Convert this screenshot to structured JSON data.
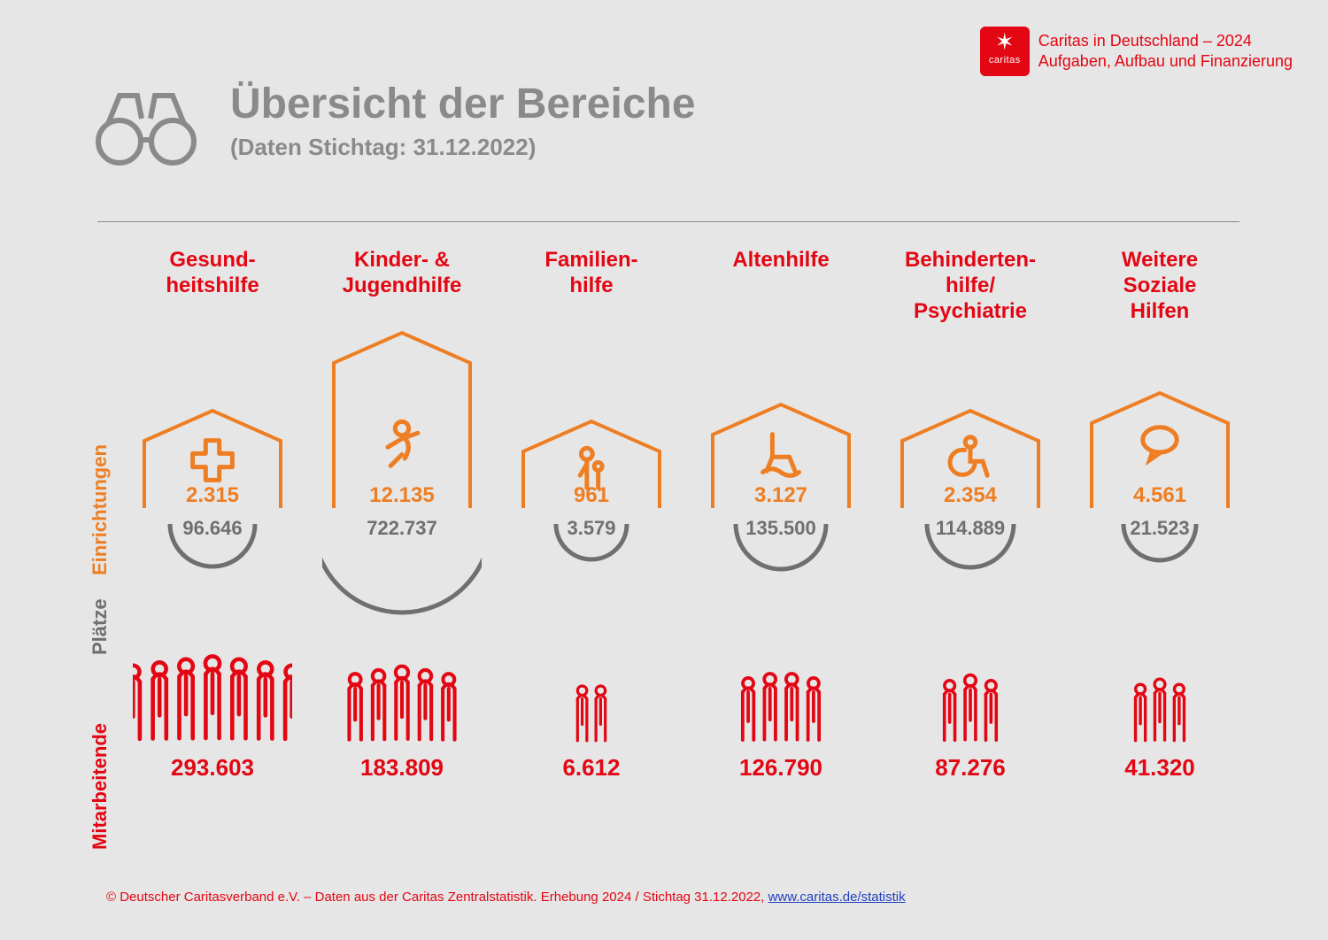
{
  "brand": {
    "line1": "Caritas in Deutschland – 2024",
    "line2": "Aufgaben, Aufbau und Finanzierung",
    "logo_word": "caritas",
    "logo_bg": "#e30613"
  },
  "header": {
    "title": "Übersicht der Bereiche",
    "subtitle": "(Daten Stichtag: 31.12.2022)"
  },
  "colors": {
    "background": "#e6e6e6",
    "gray": "#8a8a8a",
    "gray_dark": "#6f6f6f",
    "orange": "#ee7e23",
    "red": "#e30613"
  },
  "row_labels": {
    "einrichtungen": "Einrichtungen",
    "plaetze": "Plätze",
    "mitarbeitende": "Mitarbeitende"
  },
  "house_heights": {
    "min": 110,
    "max": 210
  },
  "arc_radii": {
    "min": 40,
    "max": 100
  },
  "people_counts": {
    "min": 2,
    "max": 7
  },
  "categories": [
    {
      "key": "gesundheit",
      "title": "Gesund-\nheitshilfe",
      "icon": "cross",
      "einrichtungen": 2315,
      "einrichtungen_label": "2.315",
      "plaetze": 96646,
      "plaetze_label": "96.646",
      "mitarbeitende": 293603,
      "mitarbeitende_label": "293.603"
    },
    {
      "key": "kinder",
      "title": "Kinder- &\nJugendhilfe",
      "icon": "child",
      "einrichtungen": 12135,
      "einrichtungen_label": "12.135",
      "plaetze": 722737,
      "plaetze_label": "722.737",
      "mitarbeitende": 183809,
      "mitarbeitende_label": "183.809"
    },
    {
      "key": "familien",
      "title": "Familien-\nhilfe",
      "icon": "family",
      "einrichtungen": 961,
      "einrichtungen_label": "961",
      "plaetze": 3579,
      "plaetze_label": "3.579",
      "mitarbeitende": 6612,
      "mitarbeitende_label": "6.612"
    },
    {
      "key": "alten",
      "title": "Altenhilfe",
      "icon": "chair",
      "einrichtungen": 3127,
      "einrichtungen_label": "3.127",
      "plaetze": 135500,
      "plaetze_label": "135.500",
      "mitarbeitende": 126790,
      "mitarbeitende_label": "126.790"
    },
    {
      "key": "behinderten",
      "title": "Behinderten-\nhilfe/\nPsychiatrie",
      "icon": "wheelchair",
      "einrichtungen": 2354,
      "einrichtungen_label": "2.354",
      "plaetze": 114889,
      "plaetze_label": "114.889",
      "mitarbeitende": 87276,
      "mitarbeitende_label": "87.276"
    },
    {
      "key": "weitere",
      "title": "Weitere\nSoziale\nHilfen",
      "icon": "speech",
      "einrichtungen": 4561,
      "einrichtungen_label": "4.561",
      "plaetze": 21523,
      "plaetze_label": "21.523",
      "mitarbeitende": 41320,
      "mitarbeitende_label": "41.320"
    }
  ],
  "footer": {
    "prefix": "© Deutscher Caritasverband e.V. – Daten aus der Caritas Zentralstatistik. Erhebung 2024 / Stichtag 31.12.2022, ",
    "link_text": "www.caritas.de/statistik"
  }
}
